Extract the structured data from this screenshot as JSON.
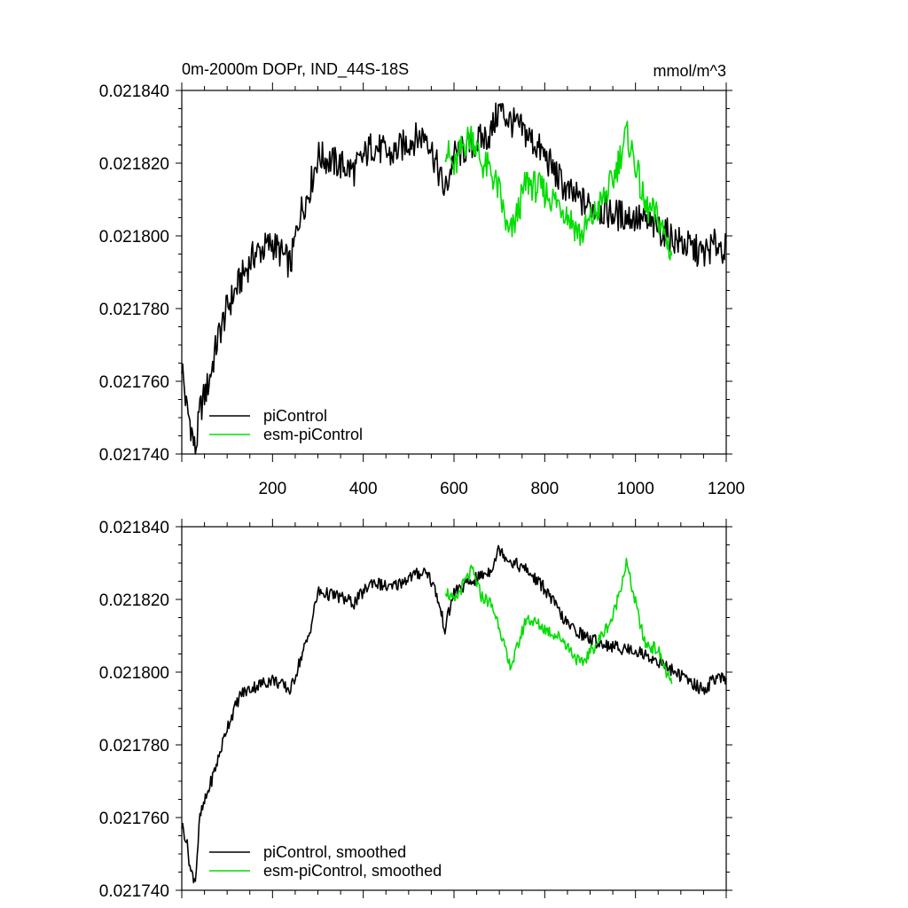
{
  "chart_data": [
    {
      "type": "line",
      "title": "0m-2000m DOPr, IND_44S-18S",
      "units": "mmol/m^3",
      "xlim": [
        0,
        1200
      ],
      "ylim": [
        0.02174,
        0.02184
      ],
      "xticks": [
        "200",
        "400",
        "600",
        "800",
        "1000",
        "1200"
      ],
      "yticks": [
        "0.021740",
        "0.021760",
        "0.021780",
        "0.021800",
        "0.021820",
        "0.021840"
      ],
      "legend_position": "bottom-left",
      "series": [
        {
          "name": "piControl",
          "color": "#000000",
          "x": [
            0,
            10,
            20,
            30,
            40,
            60,
            80,
            100,
            130,
            160,
            200,
            240,
            260,
            280,
            300,
            340,
            380,
            420,
            460,
            500,
            540,
            560,
            580,
            600,
            640,
            680,
            700,
            720,
            760,
            800,
            850,
            900,
            950,
            1000,
            1050,
            1100,
            1150,
            1180,
            1200
          ],
          "y": [
            0.021765,
            0.021753,
            0.021748,
            0.02174,
            0.021752,
            0.02176,
            0.021772,
            0.02178,
            0.021788,
            0.021795,
            0.021798,
            0.021792,
            0.021806,
            0.021812,
            0.021822,
            0.02182,
            0.021818,
            0.021825,
            0.021822,
            0.021826,
            0.021828,
            0.02182,
            0.021812,
            0.021822,
            0.021825,
            0.021828,
            0.021835,
            0.021832,
            0.021828,
            0.021822,
            0.021812,
            0.021808,
            0.021806,
            0.021805,
            0.021802,
            0.021798,
            0.021795,
            0.021798,
            0.021796
          ]
        },
        {
          "name": "esm-piControl",
          "color": "#00dd00",
          "x": [
            580,
            600,
            620,
            640,
            660,
            680,
            700,
            720,
            730,
            760,
            800,
            840,
            880,
            920,
            950,
            980,
            1000,
            1020,
            1050,
            1080
          ],
          "y": [
            0.021825,
            0.021818,
            0.021825,
            0.021828,
            0.02182,
            0.021818,
            0.021812,
            0.0218,
            0.021802,
            0.021815,
            0.021812,
            0.021808,
            0.0218,
            0.021808,
            0.021815,
            0.021828,
            0.02182,
            0.021808,
            0.021805,
            0.021795
          ]
        }
      ]
    },
    {
      "type": "line",
      "title": "",
      "units": "",
      "xlim": [
        0,
        1200
      ],
      "ylim": [
        0.02174,
        0.02184
      ],
      "xticks": [],
      "yticks": [
        "0.021740",
        "0.021760",
        "0.021780",
        "0.021800",
        "0.021820",
        "0.021840"
      ],
      "legend_position": "bottom-left",
      "series": [
        {
          "name": "piControl, smoothed",
          "color": "#000000",
          "x": [
            0,
            10,
            20,
            30,
            40,
            60,
            80,
            100,
            130,
            160,
            200,
            240,
            260,
            280,
            300,
            340,
            380,
            420,
            460,
            500,
            540,
            560,
            580,
            600,
            640,
            680,
            700,
            720,
            760,
            800,
            850,
            900,
            950,
            1000,
            1050,
            1100,
            1150,
            1180,
            1200
          ],
          "y": [
            0.021758,
            0.021754,
            0.021745,
            0.021743,
            0.02176,
            0.021768,
            0.021776,
            0.021785,
            0.021794,
            0.021796,
            0.021798,
            0.021795,
            0.021803,
            0.02181,
            0.021822,
            0.021821,
            0.021819,
            0.021825,
            0.021823,
            0.021826,
            0.021828,
            0.021822,
            0.021812,
            0.021822,
            0.021825,
            0.021828,
            0.021834,
            0.021831,
            0.021828,
            0.021823,
            0.021813,
            0.021809,
            0.021807,
            0.021806,
            0.021803,
            0.021799,
            0.021795,
            0.021799,
            0.021797
          ]
        },
        {
          "name": "esm-piControl, smoothed",
          "color": "#00dd00",
          "x": [
            580,
            600,
            620,
            640,
            660,
            680,
            700,
            720,
            730,
            760,
            800,
            840,
            880,
            920,
            950,
            980,
            1000,
            1020,
            1050,
            1080
          ],
          "y": [
            0.021823,
            0.021819,
            0.021824,
            0.021828,
            0.021821,
            0.021819,
            0.021813,
            0.021802,
            0.021803,
            0.021815,
            0.021812,
            0.021809,
            0.021802,
            0.021809,
            0.021815,
            0.02183,
            0.021819,
            0.021808,
            0.021806,
            0.021796
          ]
        }
      ]
    }
  ]
}
